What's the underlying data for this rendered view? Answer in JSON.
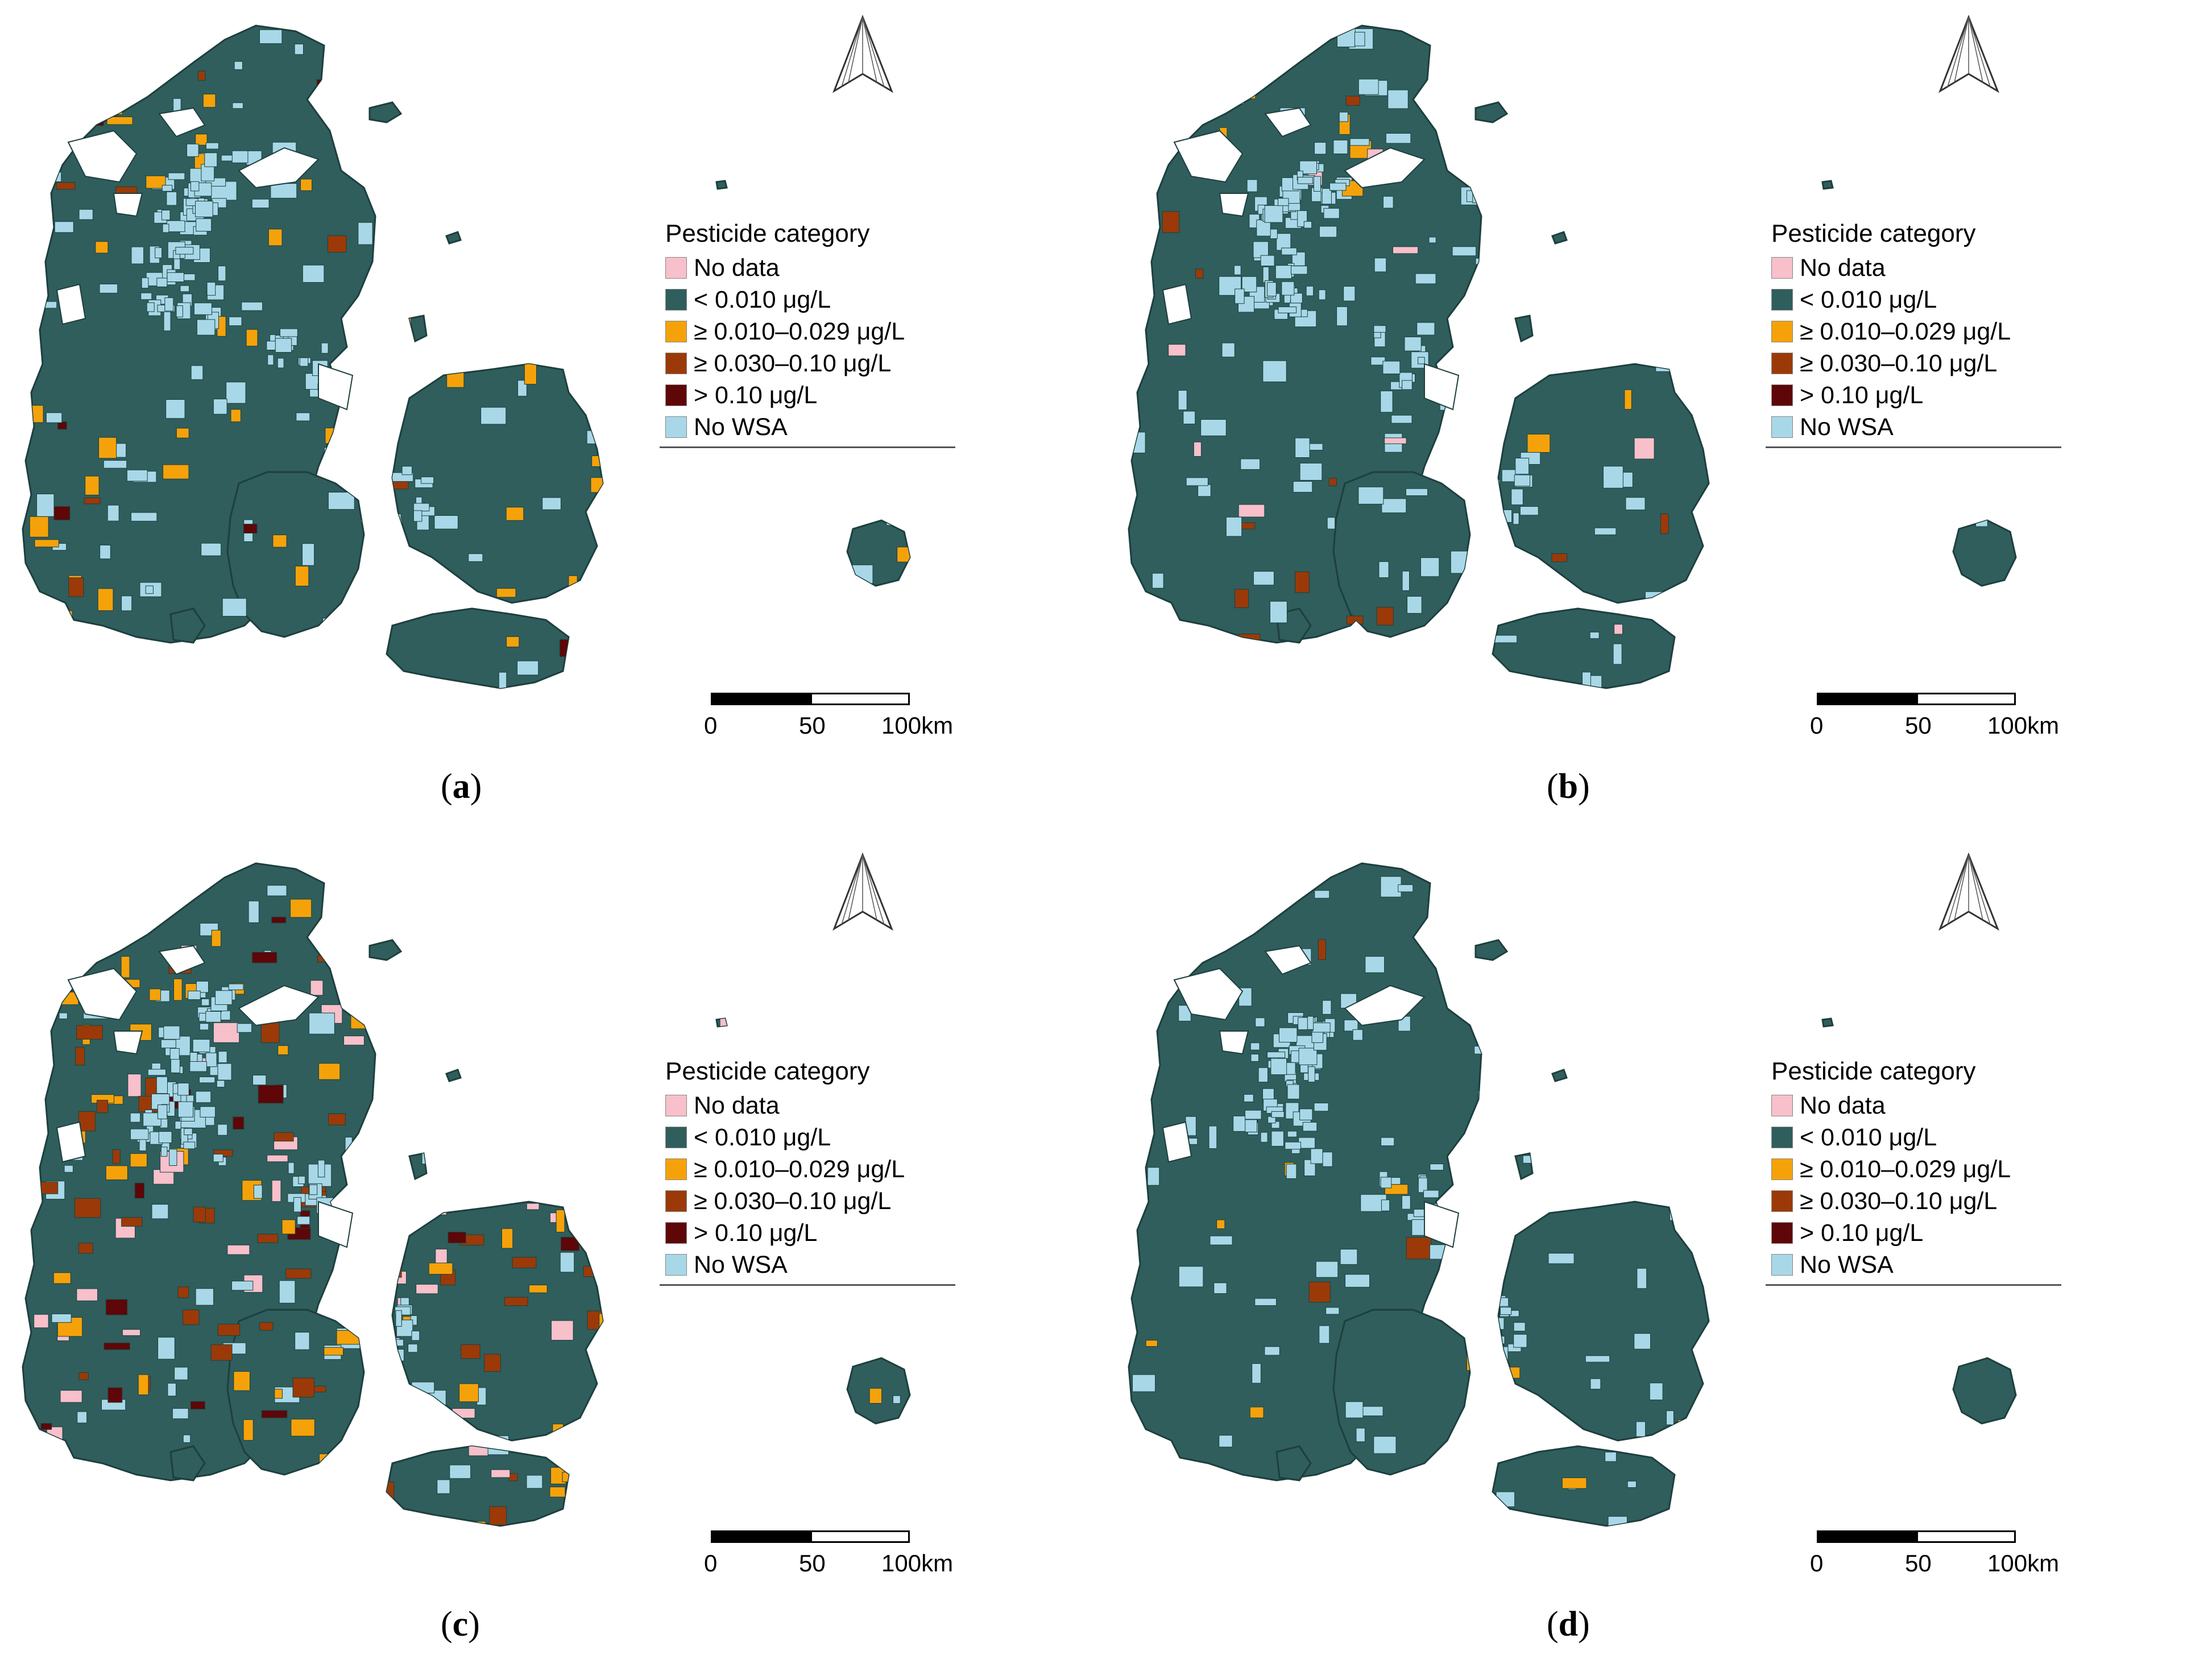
{
  "colors": {
    "no_data": "#f7c0cb",
    "lt_0010": "#2f5e5c",
    "c_0010_0029": "#f5a20a",
    "c_0030_010": "#9b3a08",
    "gt_010": "#5e0608",
    "no_wsa": "#a8d8e8",
    "border": "#1d3f3e"
  },
  "legend": {
    "title": "Pesticide category",
    "items": [
      {
        "label": "No data",
        "color_key": "no_data"
      },
      {
        "label": "< 0.010 μg/L",
        "color_key": "lt_0010"
      },
      {
        "label": "≥ 0.010–0.029 μg/L",
        "color_key": "c_0010_0029"
      },
      {
        "label": "≥ 0.030–0.10 μg/L",
        "color_key": "c_0030_010"
      },
      {
        "label": "> 0.10 μg/L",
        "color_key": "gt_010"
      },
      {
        "label": "No WSA",
        "color_key": "no_wsa"
      }
    ]
  },
  "scalebar": {
    "ticks": [
      "0",
      "50",
      "100km"
    ]
  },
  "panels": [
    {
      "letter": "a",
      "label_open": "(",
      "label_close": ")"
    },
    {
      "letter": "b",
      "label_open": "(",
      "label_close": ")"
    },
    {
      "letter": "c",
      "label_open": "(",
      "label_close": ")"
    },
    {
      "letter": "d",
      "label_open": "(",
      "label_close": ")"
    }
  ],
  "icons": {
    "north_arrow": "north-arrow-icon"
  }
}
